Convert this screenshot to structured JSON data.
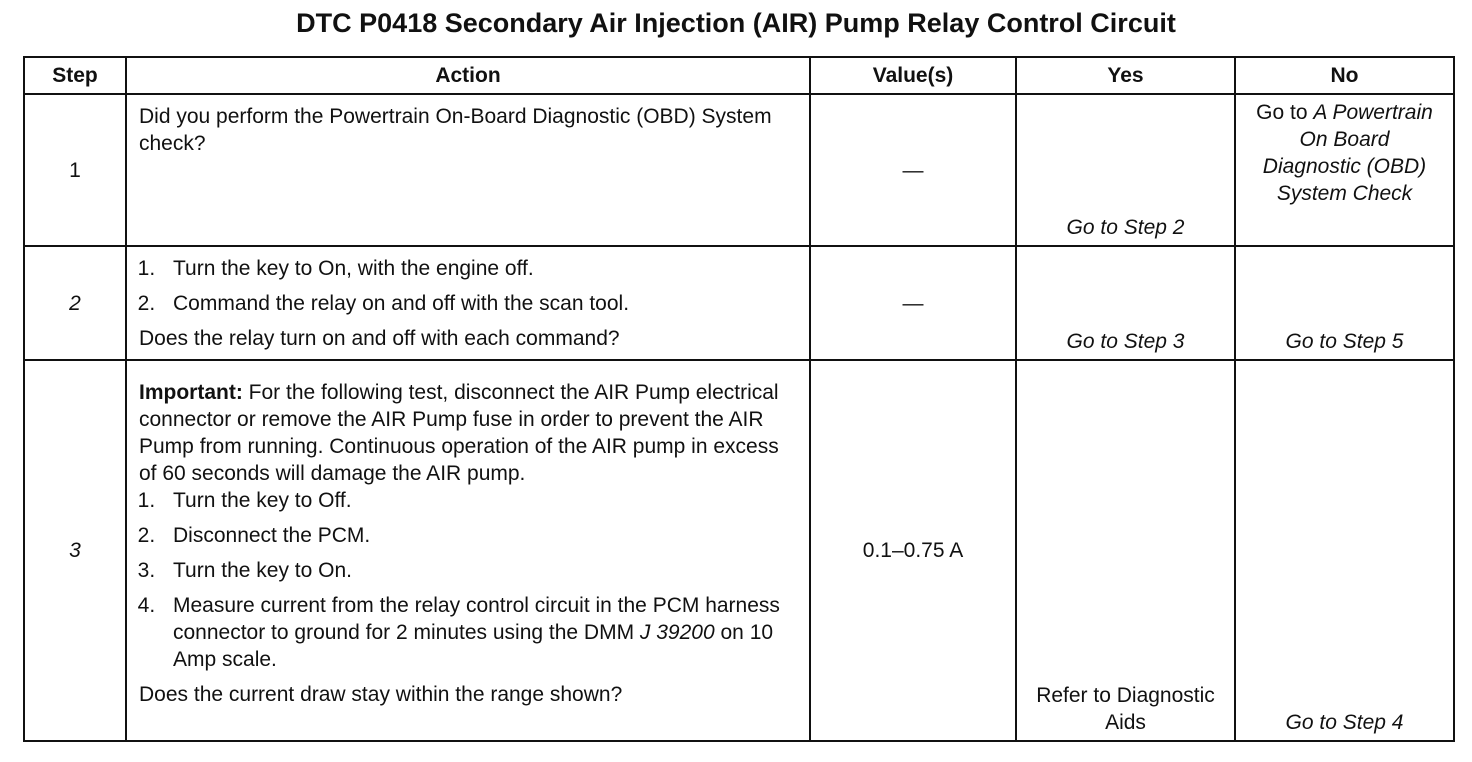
{
  "title": "DTC P0418 Secondary Air Injection (AIR) Pump Relay Control Circuit",
  "table": {
    "columns": [
      "Step",
      "Action",
      "Value(s)",
      "Yes",
      "No"
    ],
    "rows": [
      {
        "step": "1",
        "action": {
          "question": "Did you perform the Powertrain On-Board Diagnostic (OBD) System check?"
        },
        "value": "—",
        "yes": "Go to Step 2",
        "no": {
          "prefix": "Go to",
          "link": "A Powertrain On Board Diagnostic (OBD) System Check"
        }
      },
      {
        "step": "2",
        "action": {
          "steps": [
            "Turn the key to On, with the engine off.",
            "Command the relay on and off with the scan tool."
          ],
          "question": "Does the relay turn on and off with each command?"
        },
        "value": "—",
        "yes": "Go to Step 3",
        "no": "Go to Step 5"
      },
      {
        "step": "3",
        "action": {
          "important_label": "Important:",
          "important_text": "For the following test, disconnect the AIR Pump electrical connector or remove the AIR Pump fuse in order to prevent the AIR Pump from running. Continuous operation of the AIR pump in excess of 60 seconds will damage the AIR pump.",
          "steps": [
            "Turn the key to Off.",
            "Disconnect the PCM.",
            "Turn the key to On."
          ],
          "step4": {
            "text": "Measure current from the relay control circuit in the PCM harness connector to ground for 2 minutes using the DMM",
            "tool": "J 39200",
            "after": "on 10 Amp scale."
          },
          "question": "Does the current draw stay within the range shown?"
        },
        "value": "0.1–0.75 A",
        "yes": "Refer to Diagnostic Aids",
        "no": "Go to Step 4"
      }
    ]
  }
}
